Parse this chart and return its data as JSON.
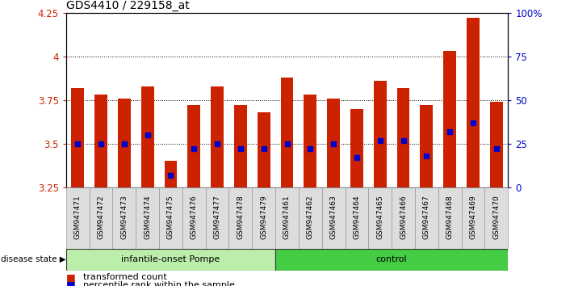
{
  "title": "GDS4410 / 229158_at",
  "samples": [
    "GSM947471",
    "GSM947472",
    "GSM947473",
    "GSM947474",
    "GSM947475",
    "GSM947476",
    "GSM947477",
    "GSM947478",
    "GSM947479",
    "GSM947461",
    "GSM947462",
    "GSM947463",
    "GSM947464",
    "GSM947465",
    "GSM947466",
    "GSM947467",
    "GSM947468",
    "GSM947469",
    "GSM947470"
  ],
  "bar_values": [
    3.82,
    3.78,
    3.76,
    3.83,
    3.4,
    3.72,
    3.83,
    3.72,
    3.68,
    3.88,
    3.78,
    3.76,
    3.7,
    3.86,
    3.82,
    3.72,
    4.03,
    4.22,
    3.74
  ],
  "percentile_values": [
    3.5,
    3.5,
    3.5,
    3.55,
    3.32,
    3.47,
    3.5,
    3.47,
    3.47,
    3.5,
    3.47,
    3.5,
    3.42,
    3.52,
    3.52,
    3.43,
    3.57,
    3.62,
    3.47
  ],
  "ylim_left": [
    3.25,
    4.25
  ],
  "ylim_right": [
    0,
    100
  ],
  "yticks_left": [
    3.25,
    3.5,
    3.75,
    4.0,
    4.25
  ],
  "yticks_right": [
    0,
    25,
    50,
    75,
    100
  ],
  "ytick_labels_left": [
    "3.25",
    "3.5",
    "3.75",
    "4",
    "4.25"
  ],
  "ytick_labels_right": [
    "0",
    "25",
    "50",
    "75",
    "100%"
  ],
  "group1_label": "infantile-onset Pompe",
  "group2_label": "control",
  "group1_count": 9,
  "group2_count": 10,
  "disease_state_label": "disease state",
  "legend1": "transformed count",
  "legend2": "percentile rank within the sample",
  "bar_color": "#cc2200",
  "dot_color": "#0000cc",
  "group1_bg": "#bbeeaa",
  "group2_bg": "#44cc44",
  "sample_box_bg": "#dddddd",
  "bar_width": 0.55,
  "background_color": "#ffffff",
  "tick_label_color_left": "#cc2200",
  "tick_label_color_right": "#0000cc"
}
